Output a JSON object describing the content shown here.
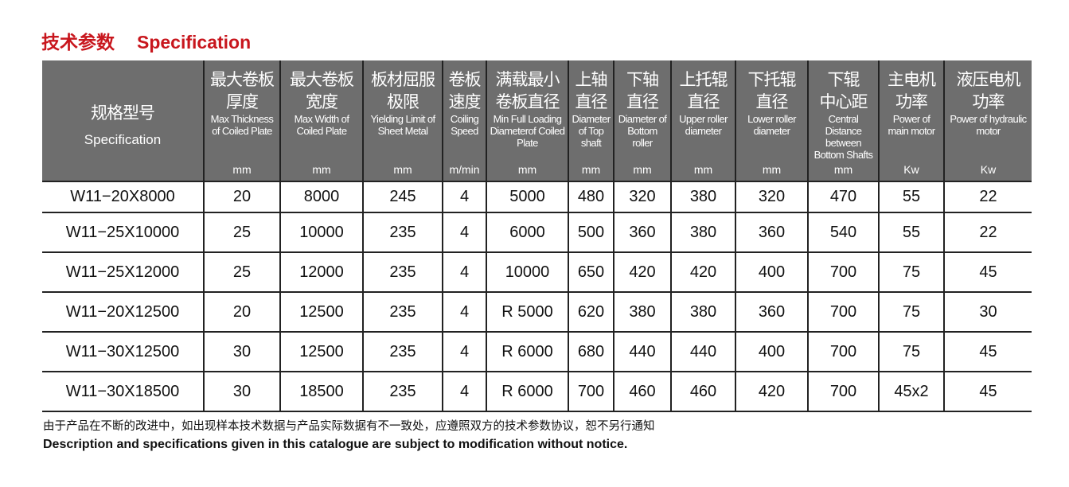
{
  "title": {
    "cn": "技术参数",
    "en": "Specification"
  },
  "headers": [
    {
      "cn": "规格型号",
      "en": "Specification",
      "unit": ""
    },
    {
      "cn": "最大卷板厚度",
      "en": "Max Thickness of Coiled Plate",
      "unit": "mm"
    },
    {
      "cn": "最大卷板宽度",
      "en": "Max Width of Coiled Plate",
      "unit": "mm"
    },
    {
      "cn": "板材屈服极限",
      "en": "Yielding Limit of Sheet Metal",
      "unit": "mm"
    },
    {
      "cn": "卷板速度",
      "en": "Coiling Speed",
      "unit": "m/min"
    },
    {
      "cn": "满载最小卷板直径",
      "en": "Min Full Loading Diameterof Coiled Plate",
      "unit": "mm"
    },
    {
      "cn": "上轴直径",
      "en": "Diameter of Top shaft",
      "unit": "mm"
    },
    {
      "cn": "下轴直径",
      "en": "Diameter of Bottom roller",
      "unit": "mm"
    },
    {
      "cn": "上托辊直径",
      "en": "Upper roller diameter",
      "unit": "mm"
    },
    {
      "cn": "下托辊直径",
      "en": "Lower roller diameter",
      "unit": "mm"
    },
    {
      "cn": "下辊中心距",
      "en": "Central Distance between Bottom Shafts",
      "unit": "mm"
    },
    {
      "cn": "主电机功率",
      "en": "Power of main motor",
      "unit": "Kw"
    },
    {
      "cn": "液压电机功率",
      "en": "Power of hydraulic motor",
      "unit": "Kw"
    }
  ],
  "rows": [
    [
      "W11−20X8000",
      "20",
      "8000",
      "245",
      "4",
      "5000",
      "480",
      "320",
      "380",
      "320",
      "470",
      "55",
      "22"
    ],
    [
      "W11−25X10000",
      "25",
      "10000",
      "235",
      "4",
      "6000",
      "500",
      "360",
      "380",
      "360",
      "540",
      "55",
      "22"
    ],
    [
      "W11−25X12000",
      "25",
      "12000",
      "235",
      "4",
      "10000",
      "650",
      "420",
      "420",
      "400",
      "700",
      "75",
      "45"
    ],
    [
      "W11−20X12500",
      "20",
      "12500",
      "235",
      "4",
      "R 5000",
      "620",
      "380",
      "380",
      "360",
      "700",
      "75",
      "30"
    ],
    [
      "W11−30X12500",
      "30",
      "12500",
      "235",
      "4",
      "R 6000",
      "680",
      "440",
      "440",
      "400",
      "700",
      "75",
      "45"
    ],
    [
      "W11−30X18500",
      "30",
      "18500",
      "235",
      "4",
      "R 6000",
      "700",
      "460",
      "460",
      "420",
      "700",
      "45x2",
      "45"
    ]
  ],
  "notes": {
    "cn": "由于产品在不断的改进中，如出现样本技术数据与产品实际数据有不一致处，应遵照双方的技术参数协议，恕不另行通知",
    "en": "Description and specifications given in this catalogue are subject to modification without notice."
  }
}
